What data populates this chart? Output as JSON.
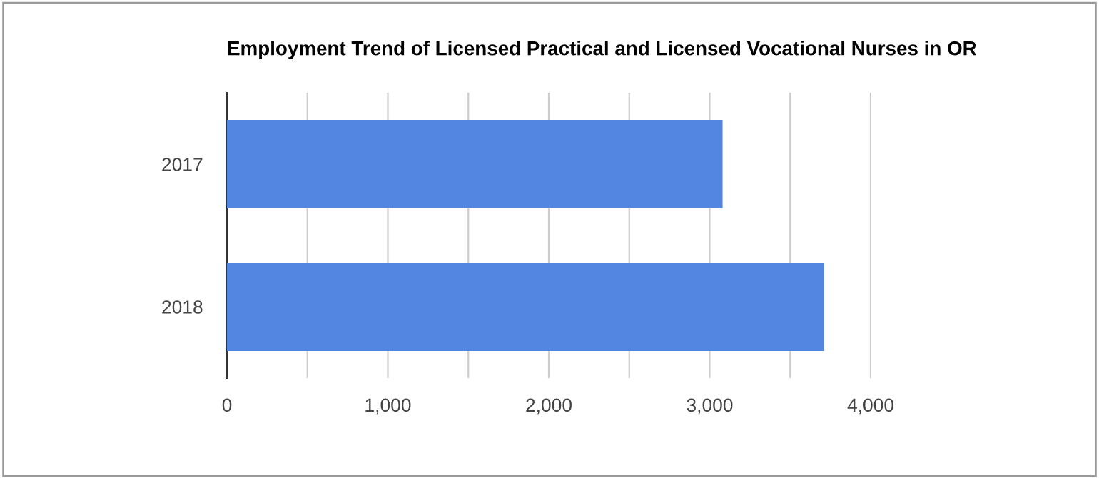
{
  "chart_data": {
    "type": "bar",
    "orientation": "horizontal",
    "title": "Employment Trend of Licensed Practical and Licensed Vocational Nurses in OR",
    "categories": [
      "2017",
      "2018"
    ],
    "values": [
      3080,
      3710
    ],
    "color": "#5286e0",
    "xlim": [
      0,
      4000
    ],
    "xticks": [
      0,
      {
        "value": 500,
        "label": null
      },
      {
        "value": 1000,
        "label": "1,000"
      },
      {
        "value": 1500,
        "label": null
      },
      {
        "value": 2000,
        "label": "2,000"
      },
      {
        "value": 2500,
        "label": null
      },
      {
        "value": 3000,
        "label": "3,000"
      },
      {
        "value": 3500,
        "label": null
      },
      {
        "value": 4000,
        "label": "4,000"
      }
    ],
    "grid": "x",
    "legend": false
  }
}
